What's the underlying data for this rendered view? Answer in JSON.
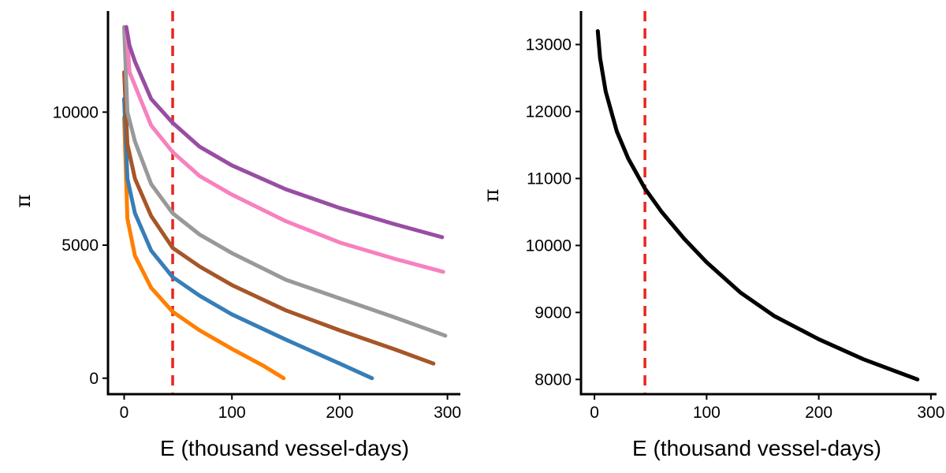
{
  "chart_data": [
    {
      "type": "line",
      "xlabel": "E (thousand vessel-days)",
      "ylabel": "π",
      "xlim": [
        -15,
        312
      ],
      "ylim": [
        -600,
        13800
      ],
      "xticks": [
        0,
        100,
        200,
        300
      ],
      "yticks": [
        0,
        5000,
        10000
      ],
      "vline": 45,
      "series": [
        {
          "color": "#ff7f00",
          "x": [
            0,
            3,
            10,
            25,
            45,
            70,
            100,
            130,
            148
          ],
          "y": [
            9800,
            6000,
            4600,
            3400,
            2500,
            1800,
            1100,
            450,
            0
          ]
        },
        {
          "color": "#377eb8",
          "x": [
            0,
            3,
            10,
            25,
            45,
            70,
            100,
            150,
            200,
            230
          ],
          "y": [
            10500,
            7500,
            6200,
            4800,
            3800,
            3100,
            2400,
            1450,
            550,
            0
          ]
        },
        {
          "color": "#a65628",
          "x": [
            0,
            3,
            10,
            25,
            45,
            70,
            100,
            150,
            200,
            250,
            287
          ],
          "y": [
            11500,
            8800,
            7500,
            6100,
            4900,
            4200,
            3500,
            2550,
            1800,
            1100,
            550
          ]
        },
        {
          "color": "#999999",
          "x": [
            0,
            3,
            10,
            25,
            45,
            70,
            100,
            150,
            200,
            250,
            298
          ],
          "y": [
            13200,
            10000,
            8900,
            7300,
            6200,
            5400,
            4700,
            3700,
            3000,
            2300,
            1600
          ]
        },
        {
          "color": "#f781bf",
          "x": [
            2,
            5,
            10,
            25,
            45,
            70,
            100,
            150,
            200,
            250,
            296
          ],
          "y": [
            13200,
            11500,
            11000,
            9500,
            8500,
            7600,
            6900,
            5900,
            5100,
            4500,
            4000
          ]
        },
        {
          "color": "#984ea3",
          "x": [
            2,
            5,
            10,
            25,
            45,
            70,
            100,
            150,
            200,
            250,
            295
          ],
          "y": [
            13200,
            12500,
            11900,
            10500,
            9600,
            8700,
            8000,
            7100,
            6400,
            5800,
            5300
          ]
        }
      ]
    },
    {
      "type": "line",
      "xlabel": "E (thousand vessel-days)",
      "ylabel": "π",
      "xlim": [
        -12,
        305
      ],
      "ylim": [
        7780,
        13500
      ],
      "xticks": [
        0,
        100,
        200,
        300
      ],
      "yticks": [
        8000,
        9000,
        10000,
        11000,
        12000,
        13000
      ],
      "vline": 45,
      "series": [
        {
          "color": "#000000",
          "x": [
            3,
            5,
            10,
            20,
            30,
            45,
            60,
            80,
            100,
            130,
            160,
            200,
            240,
            288
          ],
          "y": [
            13200,
            12800,
            12300,
            11700,
            11300,
            10850,
            10500,
            10100,
            9750,
            9300,
            8950,
            8600,
            8300,
            8000
          ]
        }
      ]
    }
  ]
}
